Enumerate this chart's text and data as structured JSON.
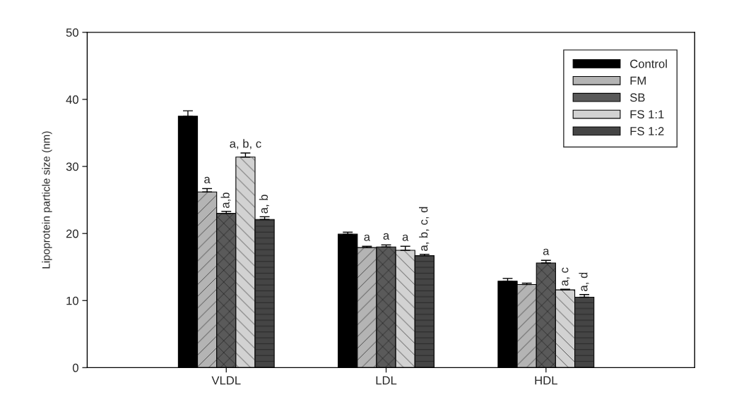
{
  "chart_data": {
    "type": "bar",
    "ylabel": "Lipoprotein particle size (nm)",
    "categories": [
      "VLDL",
      "LDL",
      "HDL"
    ],
    "series": [
      {
        "name": "Control",
        "color": "#000000",
        "values": [
          37.5,
          19.9,
          12.9
        ],
        "errors": [
          0.8,
          0.3,
          0.4
        ]
      },
      {
        "name": "FM",
        "color": "#b4b4b4",
        "values": [
          26.2,
          17.9,
          12.4
        ],
        "errors": [
          0.5,
          0.2,
          0.2
        ]
      },
      {
        "name": "SB",
        "color": "#5a5a5a",
        "values": [
          23.0,
          18.0,
          15.6
        ],
        "errors": [
          0.3,
          0.3,
          0.4
        ]
      },
      {
        "name": "FS 1:1",
        "color": "#d2d2d2",
        "values": [
          31.4,
          17.5,
          11.6
        ],
        "errors": [
          0.6,
          0.6,
          0.1
        ]
      },
      {
        "name": "FS 1:2",
        "color": "#454545",
        "values": [
          22.1,
          16.7,
          10.5
        ],
        "errors": [
          0.4,
          0.2,
          0.4
        ]
      }
    ],
    "ylim": [
      0,
      50
    ],
    "yticks": [
      0,
      10,
      20,
      30,
      40,
      50
    ],
    "grid": false,
    "legend": "top right",
    "annotations": [
      "a",
      "a,b",
      "a, b, c",
      "a, b",
      "a",
      "a",
      "a",
      "a, b, c, d",
      "a",
      "a, c",
      "a, d"
    ]
  }
}
